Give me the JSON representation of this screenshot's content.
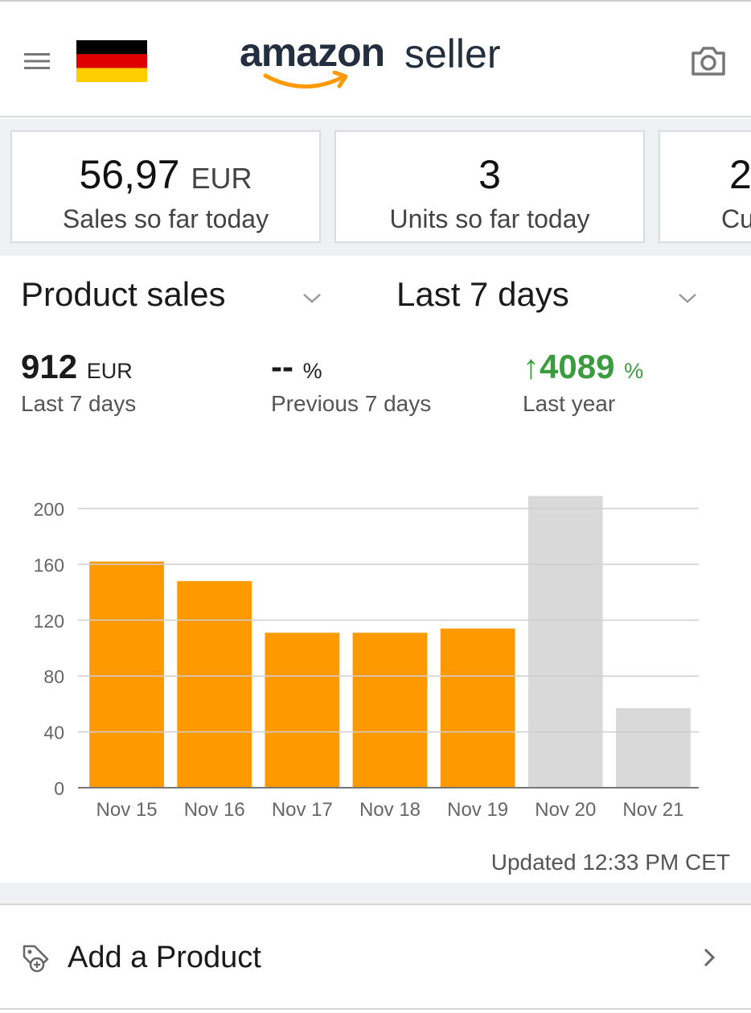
{
  "header": {
    "brand_amazon": "amazon",
    "brand_seller": "seller",
    "menu_icon": "hamburger-menu-icon",
    "flag_icon": "germany-flag-icon",
    "camera_icon": "camera-icon",
    "accent_color": "#ff9900"
  },
  "kpis": [
    {
      "value": "56,97",
      "unit": "EUR",
      "label": "Sales so far today"
    },
    {
      "value": "3",
      "unit": "",
      "label": "Units so far today"
    },
    {
      "value": "2",
      "unit": "",
      "label": "Cu"
    }
  ],
  "selectors": {
    "metric": "Product sales",
    "period": "Last 7 days"
  },
  "stats": {
    "current": {
      "value": "912",
      "unit": "EUR",
      "label": "Last 7 days"
    },
    "previous": {
      "value": "--",
      "unit": "%",
      "label": "Previous 7 days"
    },
    "last_year": {
      "arrow": "↑",
      "value": "4089",
      "unit": "%",
      "label": "Last year",
      "color": "#3a9b3f"
    }
  },
  "chart_data": {
    "type": "bar",
    "categories": [
      "Nov 15",
      "Nov 16",
      "Nov 17",
      "Nov 18",
      "Nov 19",
      "Nov 20",
      "Nov 21"
    ],
    "values": [
      162,
      148,
      111,
      111,
      114,
      209,
      57
    ],
    "colors": [
      "#ff9900",
      "#ff9900",
      "#ff9900",
      "#ff9900",
      "#ff9900",
      "#d9d9d9",
      "#d9d9d9"
    ],
    "yticks": [
      0,
      40,
      80,
      120,
      160,
      200
    ],
    "ylim": [
      0,
      200
    ],
    "grid": true
  },
  "updated_text": "Updated 12:33 PM CET",
  "add_product": {
    "label": "Add a Product",
    "icon": "add-tag-icon"
  }
}
